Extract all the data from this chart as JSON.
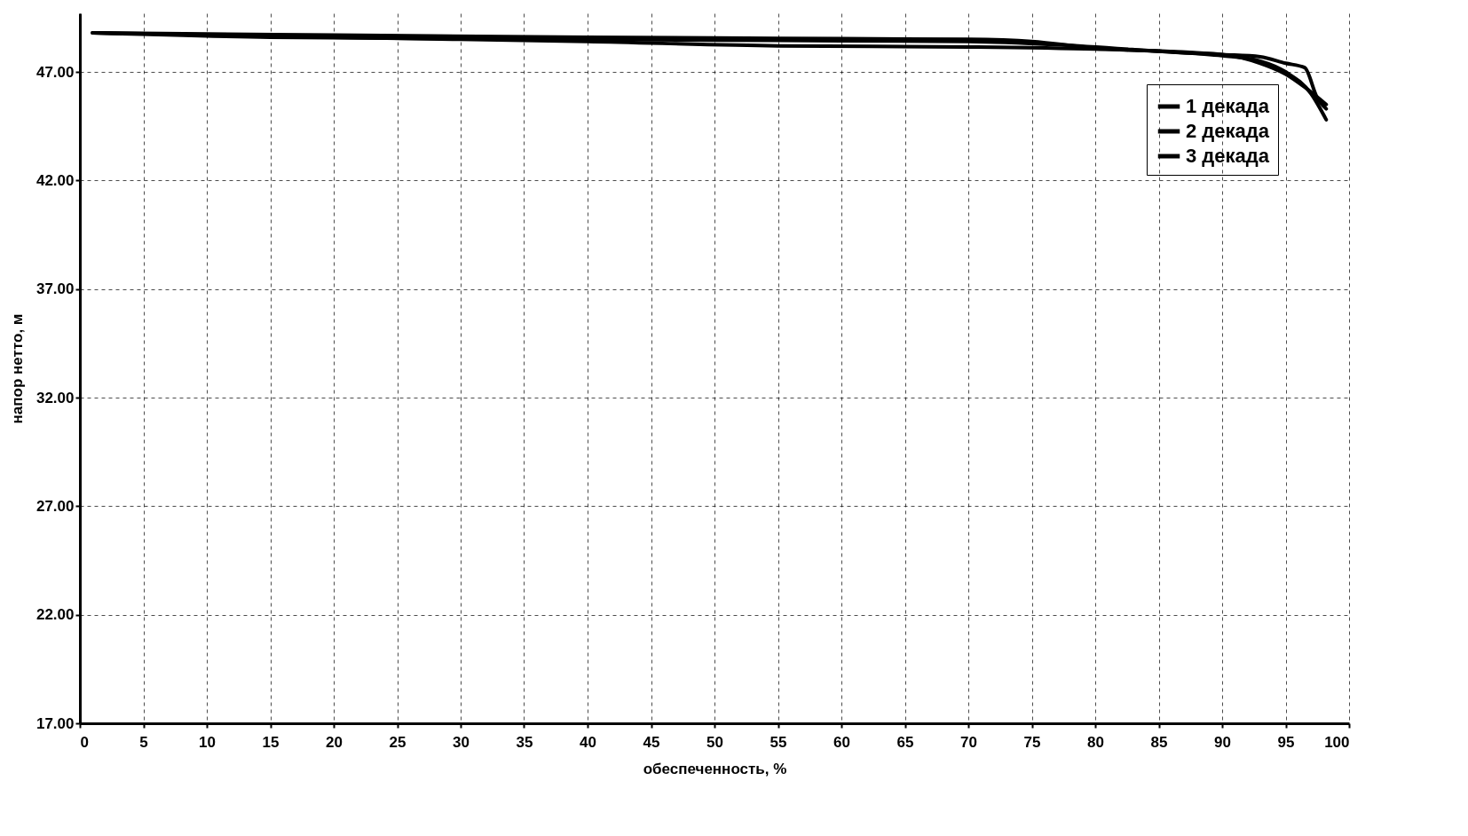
{
  "chart_data": {
    "type": "line",
    "xlabel": "обеспеченность, %",
    "ylabel": "напор нетто, м",
    "xlim": [
      0,
      100
    ],
    "xticks": [
      0,
      5,
      10,
      15,
      20,
      25,
      30,
      35,
      40,
      45,
      50,
      55,
      60,
      65,
      70,
      75,
      80,
      85,
      90,
      95,
      100
    ],
    "ylim": [
      17,
      49.7
    ],
    "yticks": [
      {
        "value": 17,
        "label": "17.00"
      },
      {
        "value": 22,
        "label": "22.00"
      },
      {
        "value": 27,
        "label": "27.00"
      },
      {
        "value": 32,
        "label": "32.00"
      },
      {
        "value": 37,
        "label": "37.00"
      },
      {
        "value": 42,
        "label": "42.00"
      },
      {
        "value": 47,
        "label": "47.00"
      }
    ],
    "grid": true,
    "legend": "top right",
    "marker": "none",
    "line_style": "solid",
    "series": [
      {
        "name": "1 декада",
        "color": "#000000",
        "x": [
          1,
          10,
          20,
          40,
          55,
          70,
          75,
          80,
          85,
          90,
          93,
          95,
          96.5,
          97.5,
          98.2
        ],
        "values": [
          48.8,
          48.75,
          48.7,
          48.6,
          48.55,
          48.5,
          48.4,
          48.1,
          47.95,
          47.8,
          47.7,
          47.4,
          47.2,
          45.8,
          45.3
        ]
      },
      {
        "name": "2 декада",
        "color": "#000000",
        "x": [
          1,
          12,
          20,
          40,
          55,
          70,
          80,
          90,
          93,
          95,
          96.5,
          98.2
        ],
        "values": [
          48.8,
          48.7,
          48.6,
          48.4,
          48.2,
          48.15,
          48.05,
          47.8,
          47.4,
          46.9,
          46.3,
          45.5
        ]
      },
      {
        "name": "3 декада",
        "color": "#000000",
        "x": [
          1,
          15,
          40,
          55,
          70,
          77,
          85,
          90,
          93,
          95,
          97,
          98.2
        ],
        "values": [
          48.8,
          48.6,
          48.5,
          48.45,
          48.4,
          48.25,
          47.95,
          47.75,
          47.5,
          47.0,
          46.0,
          44.8
        ]
      }
    ]
  }
}
